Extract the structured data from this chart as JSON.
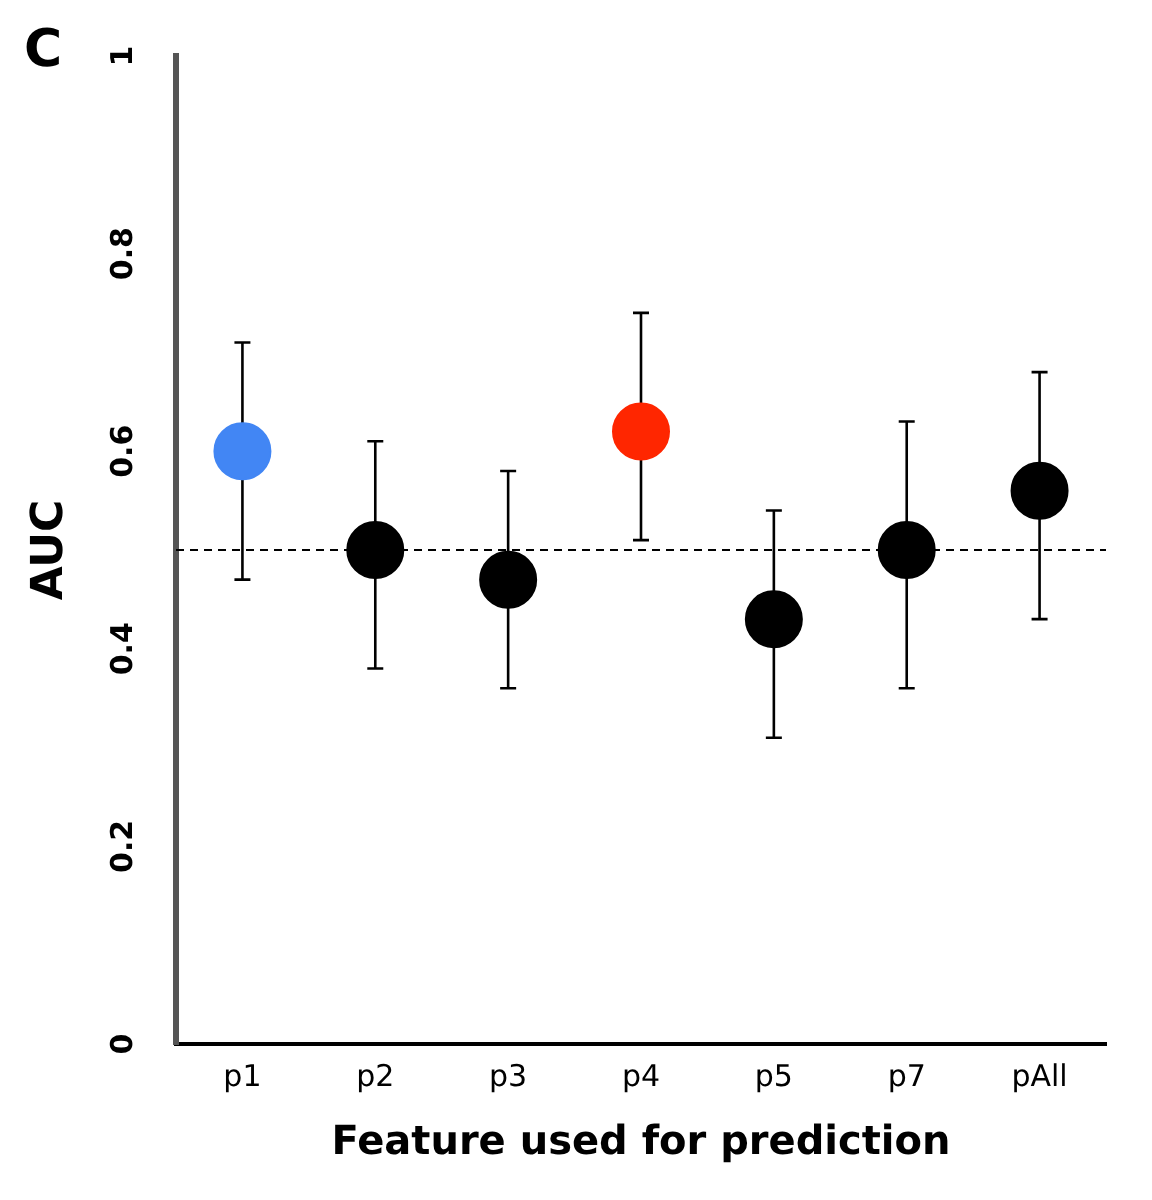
{
  "chart_data": {
    "type": "scatter",
    "xlabel": "Feature used for prediction",
    "ylabel": "AUC",
    "categories": [
      "p1",
      "p2",
      "p3",
      "p4",
      "p5",
      "p7",
      "pAll"
    ],
    "values": [
      0.6,
      0.5,
      0.47,
      0.62,
      0.43,
      0.5,
      0.56
    ],
    "colors": [
      "#4286f4",
      "#000000",
      "#000000",
      "#ff2600",
      "#000000",
      "#000000",
      "#000000"
    ],
    "errors": [
      [
        0.47,
        0.71
      ],
      [
        0.38,
        0.61
      ],
      [
        0.36,
        0.58
      ],
      [
        0.51,
        0.74
      ],
      [
        0.31,
        0.54
      ],
      [
        0.36,
        0.63
      ],
      [
        0.43,
        0.68
      ]
    ],
    "ylim": [
      0,
      1
    ],
    "yticks": [
      0,
      0.2,
      0.4,
      0.6,
      0.8,
      1
    ],
    "ref_lines": [
      {
        "axis": "y",
        "value": 0.5,
        "line_style": "dashed",
        "color": "#000000"
      }
    ],
    "annotations": [
      "C"
    ],
    "marker": "circle",
    "grid": false,
    "legend": false
  }
}
